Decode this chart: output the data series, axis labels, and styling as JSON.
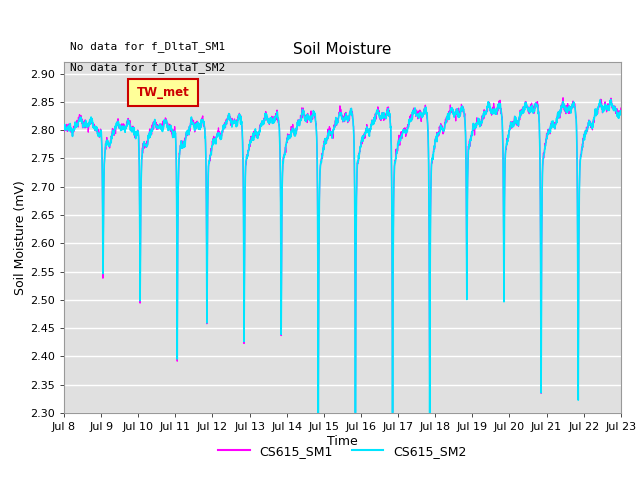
{
  "title": "Soil Moisture",
  "xlabel": "Time",
  "ylabel": "Soil Moisture (mV)",
  "ylim": [
    2.3,
    2.92
  ],
  "yticks": [
    2.3,
    2.35,
    2.4,
    2.45,
    2.5,
    2.55,
    2.6,
    2.65,
    2.7,
    2.75,
    2.8,
    2.85,
    2.9
  ],
  "xtick_labels": [
    "Jul 8",
    "Jul 9",
    "Jul 10",
    "Jul 11",
    "Jul 12",
    "Jul 13",
    "Jul 14",
    "Jul 15",
    "Jul 16",
    "Jul 17",
    "Jul 18",
    "Jul 19",
    "Jul 20",
    "Jul 21",
    "Jul 22",
    "Jul 23"
  ],
  "annotations": [
    "No data for f_DltaT_SM1",
    "No data for f_DltaT_SM2"
  ],
  "legend_box_label": "TW_met",
  "legend_box_color": "#ffff99",
  "legend_box_border": "#cc0000",
  "cs615_sm1_color": "#ff00ff",
  "cs615_sm2_color": "#00e5ff",
  "background_color": "#e0e0e0",
  "grid_color": "#ffffff",
  "fig_background": "#ffffff",
  "dip_times": [
    1.05,
    2.05,
    3.05,
    3.85,
    4.85,
    5.85,
    6.85,
    7.85,
    8.85,
    9.85,
    10.85,
    11.85,
    12.85,
    13.85
  ],
  "dip_depths": [
    0.28,
    0.32,
    0.36,
    0.37,
    0.4,
    0.38,
    0.5,
    0.48,
    0.52,
    0.5,
    0.32,
    0.34,
    0.52,
    0.55
  ],
  "base_level": 2.805,
  "upward_trend": 0.04
}
